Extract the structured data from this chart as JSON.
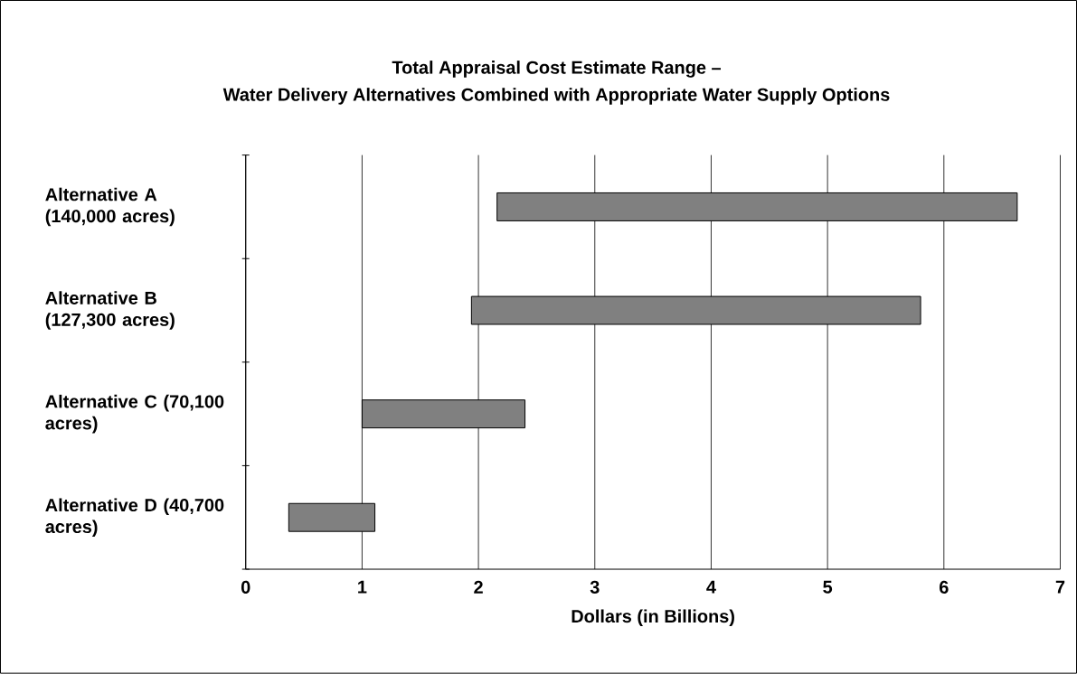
{
  "chart_data": {
    "type": "bar",
    "orientation": "horizontal",
    "title": "Total Appraisal Cost Estimate Range –",
    "subtitle": "Water Delivery Alternatives Combined with Appropriate Water Supply Options",
    "xlabel": "Dollars (in Billions)",
    "categories": [
      "Alternative A (140,000 acres)",
      "Alternative B (127,300 acres)",
      "Alternative C (70,100 acres)",
      "Alternative D (40,700 acres)"
    ],
    "base": [
      2.16,
      1.94,
      1.0,
      0.37
    ],
    "values": [
      4.47,
      3.86,
      1.4,
      0.74
    ],
    "color": "#808080",
    "xlim": [
      0,
      7
    ],
    "xticks": [
      0,
      1,
      2,
      3,
      4,
      5,
      6,
      7
    ],
    "grid": "x"
  }
}
